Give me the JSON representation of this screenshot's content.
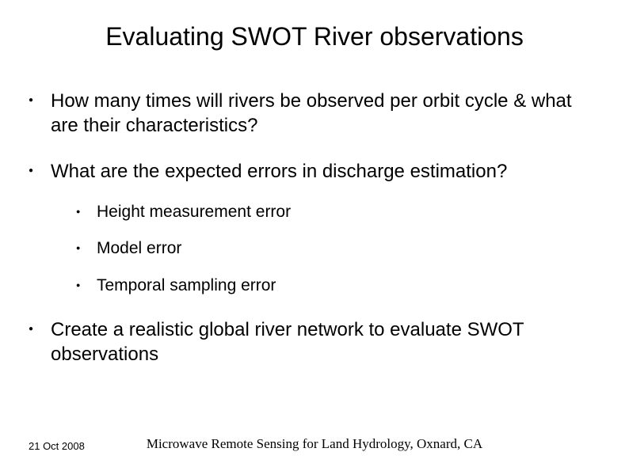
{
  "title": "Evaluating SWOT River observations",
  "bullets": [
    {
      "text": "How many times will rivers be observed per orbit cycle & what are their characteristics?"
    },
    {
      "text": "What are the expected errors in discharge estimation?",
      "sub": [
        "Height measurement error",
        "Model error",
        "Temporal sampling error"
      ]
    },
    {
      "text": "Create a realistic global river network to evaluate SWOT observations"
    }
  ],
  "footer": {
    "date": "21 Oct 2008",
    "text": "Microwave Remote Sensing for Land Hydrology, Oxnard, CA"
  },
  "styling": {
    "background_color": "#ffffff",
    "text_color": "#000000",
    "title_fontsize": 32,
    "body_fontsize": 24,
    "sub_fontsize": 21,
    "footer_date_fontsize": 13,
    "footer_text_fontsize": 17,
    "title_font": "Arial",
    "footer_font": "Times New Roman"
  }
}
